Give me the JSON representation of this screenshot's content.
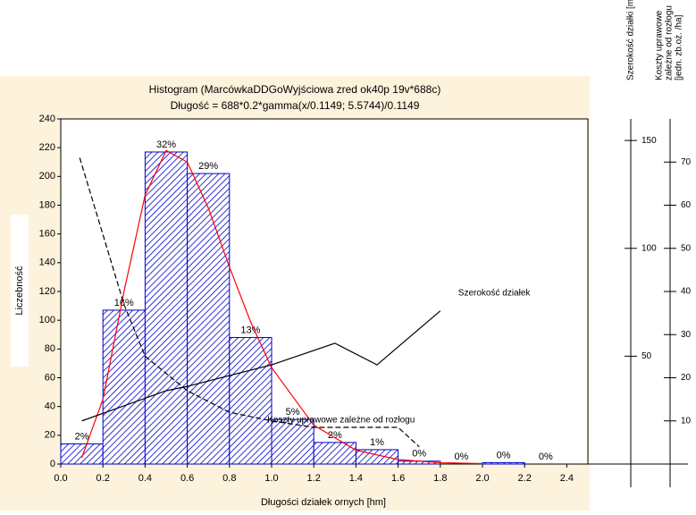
{
  "chart_data": {
    "type": "histogram",
    "title": "Histogram (MarcówkaDDGoWyjściowa zred ok40p 19v*688c)",
    "subtitle": "Długość = 688*0.2*gamma(x/0.1149; 5.5744)/0.1149",
    "xlabel": "Długości działek ornych [hm]",
    "ylabel": "Liczebność",
    "bins": [
      0,
      0.2,
      0.4,
      0.6,
      0.8,
      1.0,
      1.2,
      1.4,
      1.6,
      1.8,
      2.0,
      2.2,
      2.4
    ],
    "values": [
      14,
      107,
      217,
      202,
      88,
      31,
      15,
      10,
      2,
      0,
      1,
      0
    ],
    "value_labels": [
      "2%",
      "16%",
      "32%",
      "29%",
      "13%",
      "5%",
      "2%",
      "1%",
      "0%",
      "0%",
      "0%",
      "0%"
    ],
    "color": "#0000c8",
    "xlim": [
      0,
      2.5
    ],
    "ylim": [
      0,
      240
    ],
    "xticks": [
      {
        "value": 0,
        "label": "0.0"
      },
      0.2,
      0.4,
      0.6,
      0.8,
      {
        "value": 1,
        "label": "1.0"
      },
      1.2,
      1.4,
      1.6,
      1.8,
      {
        "value": 2,
        "label": "2.0"
      },
      2.2,
      2.4
    ],
    "yticks": [
      0,
      20,
      40,
      60,
      80,
      100,
      120,
      140,
      160,
      180,
      200,
      220,
      240
    ],
    "y2label": "Szerokość działki [m]",
    "y2lim": [
      0,
      160
    ],
    "y2ticks": [
      50,
      100,
      150
    ],
    "y3label": [
      "Koszty uprawowe",
      "zależne od rozłogu",
      "[jedn. zb.oż. /ha]"
    ],
    "y3lim": [
      0,
      80
    ],
    "y3ticks": [
      10,
      20,
      30,
      40,
      50,
      60,
      70
    ],
    "series": [
      {
        "name": null,
        "color": "#ff0000",
        "dash": false,
        "x": [
          0.1,
          0.2,
          0.3,
          0.4,
          0.5,
          0.6,
          0.7,
          0.8,
          0.9,
          1.0,
          1.2,
          1.4,
          1.6,
          1.8,
          2.0
        ],
        "values": [
          4.5,
          45,
          120,
          187,
          218,
          210,
          178,
          137,
          99,
          67,
          27,
          9.6,
          3.1,
          0.9,
          0.3
        ]
      },
      {
        "name": "Szerokość działek",
        "color": "#000000",
        "dash": false,
        "axis": "y2",
        "x": [
          0.1,
          0.5,
          0.6,
          1.0,
          1.3,
          1.5,
          1.8
        ],
        "values": [
          20,
          34,
          36,
          46,
          56,
          46,
          71
        ]
      },
      {
        "name": "Koszty uprawowe zależne od rozłogu",
        "color": "#000000",
        "dash": true,
        "axis": "y3",
        "x": [
          0.09,
          0.3,
          0.4,
          0.6,
          0.8,
          1.0,
          1.2,
          1.4,
          1.6,
          1.7
        ],
        "values": [
          71,
          37,
          25,
          17,
          12,
          10,
          8.5,
          8.5,
          8.5,
          4
        ]
      }
    ]
  }
}
